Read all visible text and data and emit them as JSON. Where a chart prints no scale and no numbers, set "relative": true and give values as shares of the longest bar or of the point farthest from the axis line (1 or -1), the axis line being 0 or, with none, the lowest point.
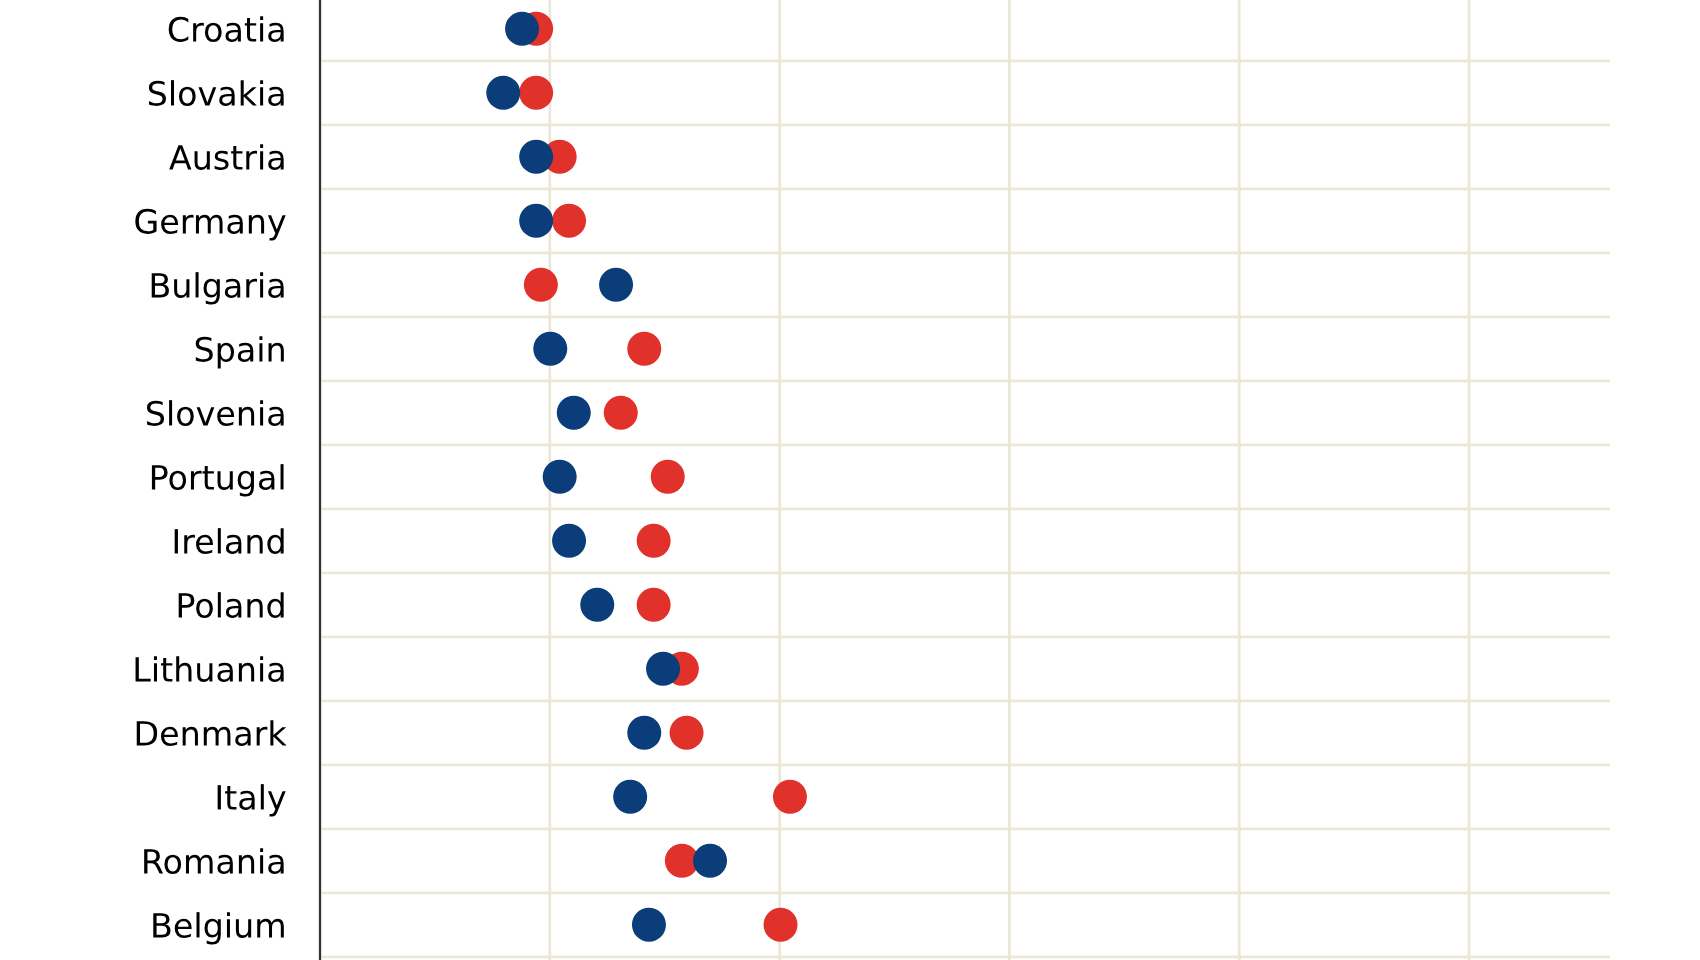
{
  "chart_data": {
    "type": "scatter",
    "orientation": "horizontal",
    "relative": true,
    "grid": true,
    "marker": "circle",
    "tick_labels": "y",
    "categories": [
      "Croatia",
      "Slovakia",
      "Austria",
      "Germany",
      "Bulgaria",
      "Spain",
      "Slovenia",
      "Portugal",
      "Ireland",
      "Poland",
      "Lithuania",
      "Denmark",
      "Italy",
      "Romania",
      "Belgium"
    ],
    "series": [
      {
        "color": "#e0312a",
        "values": [
          0.46,
          0.46,
          0.51,
          0.53,
          0.47,
          0.69,
          0.64,
          0.74,
          0.71,
          0.71,
          0.77,
          0.78,
          1.0,
          0.77,
          0.98
        ]
      },
      {
        "color": "#0b3d7a",
        "values": [
          0.43,
          0.39,
          0.46,
          0.46,
          0.63,
          0.49,
          0.54,
          0.51,
          0.53,
          0.59,
          0.73,
          0.69,
          0.66,
          0.83,
          0.7
        ]
      }
    ]
  }
}
